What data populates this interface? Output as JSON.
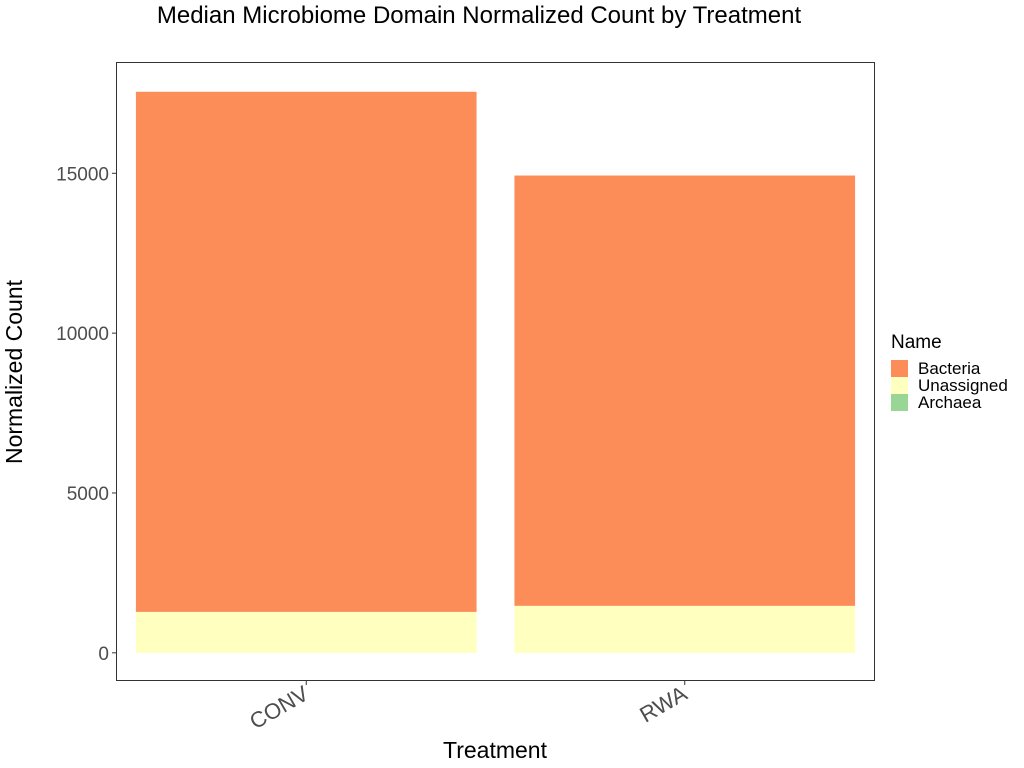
{
  "chart_data": {
    "type": "bar",
    "stacked": true,
    "title": "Median Microbiome Domain Normalized Count by Treatment",
    "xlabel": "Treatment",
    "ylabel": "Normalized Count",
    "categories": [
      "CONV",
      "RWA"
    ],
    "ylim": [
      -850,
      18450
    ],
    "yticks": [
      0,
      5000,
      10000,
      15000
    ],
    "grid": false,
    "legend_title": "Name",
    "legend_position": "right",
    "series": [
      {
        "name": "Unassigned",
        "color": "#ffffbf",
        "values": [
          1280,
          1470
        ]
      },
      {
        "name": "Archaea",
        "color": "#99d594",
        "values": [
          0,
          0
        ]
      },
      {
        "name": "Bacteria",
        "color": "#fc8d59",
        "values": [
          16270,
          13460
        ]
      }
    ],
    "legend_order": [
      "Bacteria",
      "Unassigned",
      "Archaea"
    ]
  }
}
